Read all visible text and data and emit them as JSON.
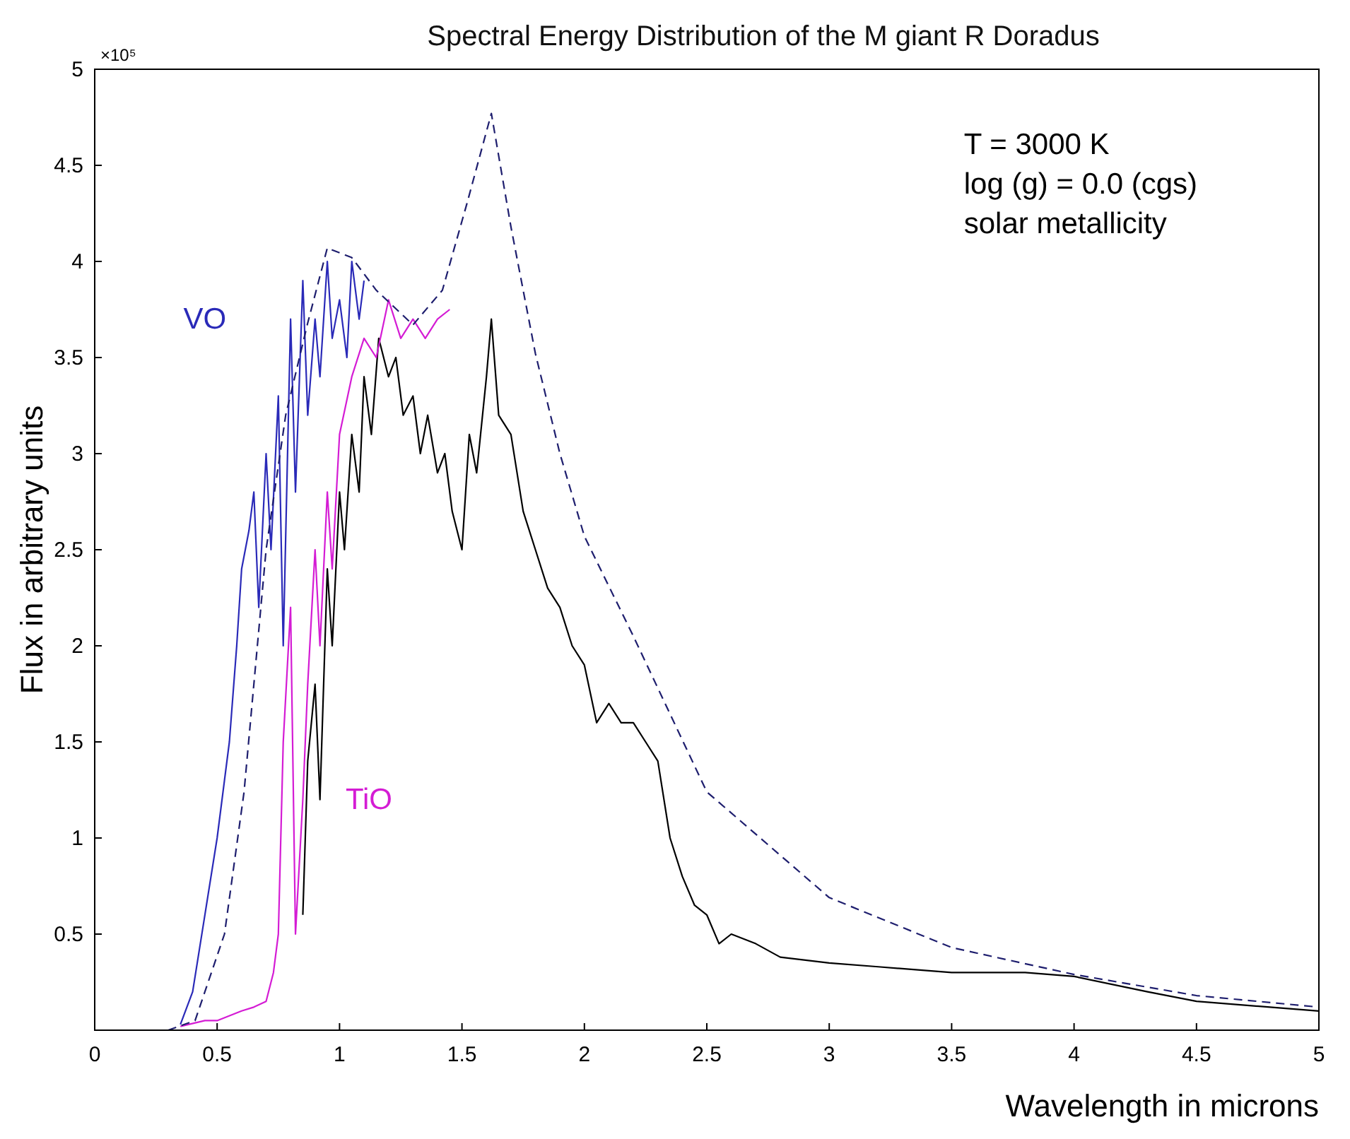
{
  "chart_data": {
    "type": "line",
    "title": "Spectral Energy Distribution of  the M giant R Doradus",
    "xlabel": "Wavelength in microns",
    "ylabel": "Flux in arbitrary units",
    "xlim": [
      0,
      5
    ],
    "xticks": [
      0,
      0.5,
      1,
      1.5,
      2,
      2.5,
      3,
      3.5,
      4,
      4.5,
      5
    ],
    "ylim": [
      0,
      5
    ],
    "yticks": [
      0.5,
      1,
      1.5,
      2,
      2.5,
      3,
      3.5,
      4,
      4.5,
      5
    ],
    "grid": false,
    "marker": "none",
    "annotations": [
      "×10⁵",
      "T = 3000 K",
      "log (g) = 0.0  (cgs)",
      "solar metallicity"
    ],
    "series": [
      {
        "color": "#000000",
        "x": [
          0.85,
          0.87,
          0.9,
          0.92,
          0.95,
          0.97,
          1.0,
          1.02,
          1.05,
          1.08,
          1.1,
          1.13,
          1.16,
          1.2,
          1.23,
          1.26,
          1.3,
          1.33,
          1.36,
          1.4,
          1.43,
          1.46,
          1.5,
          1.53,
          1.56,
          1.6,
          1.62,
          1.65,
          1.7,
          1.75,
          1.8,
          1.85,
          1.9,
          1.95,
          2.0,
          2.05,
          2.1,
          2.15,
          2.2,
          2.25,
          2.3,
          2.35,
          2.4,
          2.45,
          2.5,
          2.55,
          2.6,
          2.7,
          2.8,
          3.0,
          3.2,
          3.5,
          3.8,
          4.0,
          4.3,
          4.5,
          4.8,
          5.0
        ],
        "values": [
          0.6,
          1.4,
          1.8,
          1.2,
          2.4,
          2.0,
          2.8,
          2.5,
          3.1,
          2.8,
          3.4,
          3.1,
          3.6,
          3.4,
          3.5,
          3.2,
          3.3,
          3.0,
          3.2,
          2.9,
          3.0,
          2.7,
          2.5,
          3.1,
          2.9,
          3.4,
          3.7,
          3.2,
          3.1,
          2.7,
          2.5,
          2.3,
          2.2,
          2.0,
          1.9,
          1.6,
          1.7,
          1.6,
          1.6,
          1.5,
          1.4,
          1.0,
          0.8,
          0.65,
          0.6,
          0.45,
          0.5,
          0.45,
          0.38,
          0.35,
          0.33,
          0.3,
          0.3,
          0.28,
          0.2,
          0.15,
          0.12,
          0.1
        ],
        "line_style": "solid"
      },
      {
        "name": "VO",
        "color": "#2a2ab8",
        "x": [
          0.35,
          0.4,
          0.45,
          0.5,
          0.53,
          0.55,
          0.58,
          0.6,
          0.63,
          0.65,
          0.67,
          0.7,
          0.72,
          0.75,
          0.77,
          0.8,
          0.82,
          0.85,
          0.87,
          0.9,
          0.92,
          0.95,
          0.97,
          1.0,
          1.03,
          1.05,
          1.08,
          1.1
        ],
        "values": [
          0.03,
          0.2,
          0.6,
          1.0,
          1.3,
          1.5,
          2.0,
          2.4,
          2.6,
          2.8,
          2.2,
          3.0,
          2.5,
          3.3,
          2.0,
          3.7,
          2.8,
          3.9,
          3.2,
          3.7,
          3.4,
          4.0,
          3.6,
          3.8,
          3.5,
          4.0,
          3.7,
          3.9
        ],
        "line_style": "solid"
      },
      {
        "name": "TiO",
        "color": "#d41cd4",
        "x": [
          0.35,
          0.45,
          0.5,
          0.6,
          0.65,
          0.7,
          0.73,
          0.75,
          0.77,
          0.8,
          0.82,
          0.85,
          0.87,
          0.9,
          0.92,
          0.95,
          0.97,
          1.0,
          1.05,
          1.1,
          1.15,
          1.2,
          1.25,
          1.3,
          1.35,
          1.4,
          1.45
        ],
        "values": [
          0.02,
          0.05,
          0.05,
          0.1,
          0.12,
          0.15,
          0.3,
          0.5,
          1.5,
          2.2,
          0.5,
          1.2,
          1.8,
          2.5,
          2.0,
          2.8,
          2.4,
          3.1,
          3.4,
          3.6,
          3.5,
          3.8,
          3.6,
          3.7,
          3.6,
          3.7,
          3.75
        ],
        "line_style": "solid"
      },
      {
        "color": "#1e1e6e",
        "x": [
          0.3,
          0.41,
          0.53,
          0.61,
          0.7,
          0.78,
          0.87,
          0.95,
          1.05,
          1.15,
          1.3,
          1.42,
          1.52,
          1.62,
          1.7,
          1.8,
          1.9,
          2.0,
          2.2,
          2.5,
          3.0,
          3.5,
          4.0,
          4.5,
          5.0
        ],
        "values": [
          0.0,
          0.05,
          0.5,
          1.24,
          2.5,
          3.2,
          3.68,
          4.07,
          4.02,
          3.85,
          3.67,
          3.85,
          4.3,
          4.77,
          4.18,
          3.52,
          3.0,
          2.57,
          2.05,
          1.24,
          0.69,
          0.43,
          0.29,
          0.18,
          0.12
        ],
        "line_style": "dashed"
      }
    ]
  }
}
